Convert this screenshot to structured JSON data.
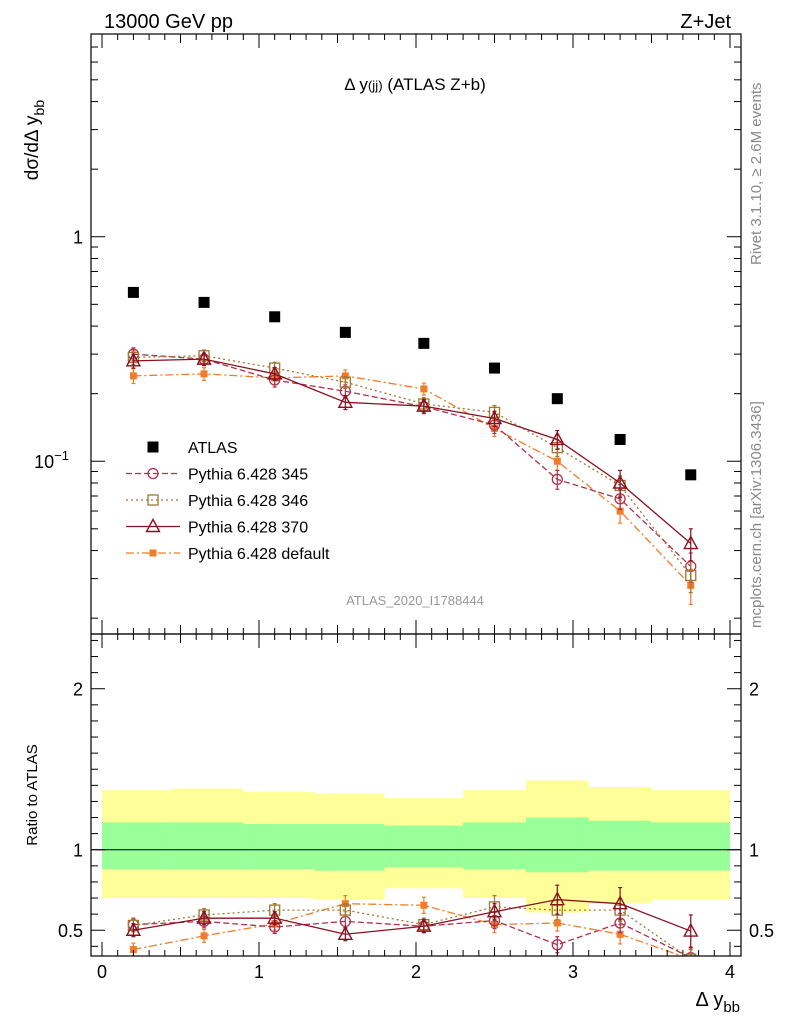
{
  "header": {
    "left": "13000 GeV pp",
    "right": "Z+Jet"
  },
  "side_labels": {
    "rivet": "Rivet 3.1.10, ≥ 2.6M events",
    "mcplots": "mcplots.cern.ch [arXiv:1306.3436]"
  },
  "chart_data": [
    {
      "type": "scatter",
      "title": "Δ y(jj) (ATLAS Z+b)",
      "ylabel": "dσ/dΔ y_bb",
      "yscale": "log",
      "ylim": [
        0.017,
        8.0
      ],
      "xlim": [
        -0.07,
        4.07
      ],
      "analysis_tag": "ATLAS_2020_I1788444",
      "yticks": [
        {
          "value": 1,
          "label": "1"
        },
        {
          "value": 0.1,
          "label": "10^-1"
        }
      ],
      "legend": {
        "position": "lower-left",
        "entries": [
          {
            "label": "ATLAS",
            "series": "ATLAS"
          },
          {
            "label": "Pythia 6.428 345",
            "series": "p345"
          },
          {
            "label": "Pythia 6.428 346",
            "series": "p346"
          },
          {
            "label": "Pythia 6.428 370",
            "series": "p370"
          },
          {
            "label": "Pythia 6.428 default",
            "series": "pdef"
          }
        ]
      },
      "x": [
        0.2,
        0.65,
        1.1,
        1.55,
        2.05,
        2.5,
        2.9,
        3.3,
        3.75
      ],
      "series": [
        {
          "name": "ATLAS",
          "marker": "filled-square",
          "color": "#000000",
          "line": "none",
          "values": [
            0.565,
            0.51,
            0.44,
            0.375,
            0.335,
            0.26,
            0.19,
            0.125,
            0.087
          ]
        },
        {
          "name": "p345",
          "marker": "open-circle",
          "color": "#b03050",
          "line": "dashed",
          "values": [
            0.3,
            0.285,
            0.23,
            0.205,
            0.175,
            0.145,
            0.083,
            0.068,
            0.034
          ],
          "err": [
            0.02,
            0.018,
            0.016,
            0.014,
            0.012,
            0.012,
            0.008,
            0.007,
            0.005
          ]
        },
        {
          "name": "p346",
          "marker": "open-square",
          "color": "#a07830",
          "line": "dotted",
          "values": [
            0.29,
            0.295,
            0.26,
            0.225,
            0.18,
            0.165,
            0.115,
            0.078,
            0.031
          ],
          "err": [
            0.02,
            0.018,
            0.016,
            0.014,
            0.012,
            0.012,
            0.01,
            0.008,
            0.005
          ]
        },
        {
          "name": "p370",
          "marker": "open-triangle",
          "color": "#8a1020",
          "line": "solid",
          "values": [
            0.28,
            0.285,
            0.245,
            0.183,
            0.176,
            0.155,
            0.125,
            0.08,
            0.043
          ],
          "err": [
            0.02,
            0.018,
            0.016,
            0.013,
            0.012,
            0.012,
            0.012,
            0.011,
            0.007
          ]
        },
        {
          "name": "pdef",
          "marker": "filled-small-square",
          "color": "#f47c28",
          "line": "dashdot",
          "values": [
            0.24,
            0.245,
            0.235,
            0.24,
            0.21,
            0.14,
            0.1,
            0.06,
            0.028
          ],
          "err": [
            0.018,
            0.016,
            0.015,
            0.015,
            0.013,
            0.011,
            0.009,
            0.007,
            0.005
          ]
        }
      ]
    },
    {
      "type": "scatter",
      "ylabel": "Ratio to ATLAS",
      "xlabel": "Δ y_bb",
      "ylim": [
        0.34,
        2.34
      ],
      "xlim": [
        -0.07,
        4.07
      ],
      "xticks": [
        0,
        1,
        2,
        3,
        4
      ],
      "yticks": [
        0.5,
        1,
        2
      ],
      "reference_line": 1,
      "bands": {
        "edges": [
          0,
          0.45,
          0.9,
          1.35,
          1.8,
          2.3,
          2.7,
          3.1,
          3.5,
          4.0
        ],
        "inner": {
          "color": "#99ff99",
          "lo": [
            0.88,
            0.88,
            0.88,
            0.87,
            0.89,
            0.88,
            0.86,
            0.87,
            0.87
          ],
          "hi": [
            1.17,
            1.17,
            1.16,
            1.16,
            1.15,
            1.17,
            1.2,
            1.18,
            1.17
          ]
        },
        "outer": {
          "color": "#ffff99",
          "lo": [
            0.7,
            0.7,
            0.7,
            0.69,
            0.76,
            0.7,
            0.61,
            0.67,
            0.69
          ],
          "hi": [
            1.37,
            1.38,
            1.36,
            1.35,
            1.32,
            1.37,
            1.43,
            1.39,
            1.37
          ]
        }
      },
      "x": [
        0.2,
        0.65,
        1.1,
        1.55,
        2.05,
        2.5,
        2.9,
        3.3,
        3.75
      ],
      "series": [
        {
          "name": "p345",
          "values": [
            0.535,
            0.555,
            0.52,
            0.555,
            0.525,
            0.56,
            0.41,
            0.545,
            0.33
          ],
          "err": [
            0.04,
            0.04,
            0.04,
            0.04,
            0.04,
            0.05,
            0.05,
            0.06,
            0.06
          ]
        },
        {
          "name": "p346",
          "values": [
            0.53,
            0.595,
            0.625,
            0.625,
            0.535,
            0.645,
            0.625,
            0.625,
            0.32
          ],
          "err": [
            0.04,
            0.04,
            0.04,
            0.04,
            0.04,
            0.07,
            0.06,
            0.07,
            0.06
          ]
        },
        {
          "name": "p370",
          "values": [
            0.5,
            0.575,
            0.575,
            0.475,
            0.525,
            0.615,
            0.69,
            0.665,
            0.495
          ],
          "err": [
            0.04,
            0.04,
            0.04,
            0.04,
            0.04,
            0.05,
            0.09,
            0.1,
            0.1
          ]
        },
        {
          "name": "pdef",
          "values": [
            0.38,
            0.465,
            0.54,
            0.665,
            0.655,
            0.535,
            0.545,
            0.475,
            0.32
          ],
          "err": [
            0.04,
            0.04,
            0.04,
            0.05,
            0.05,
            0.05,
            0.05,
            0.06,
            0.06
          ]
        }
      ]
    }
  ]
}
